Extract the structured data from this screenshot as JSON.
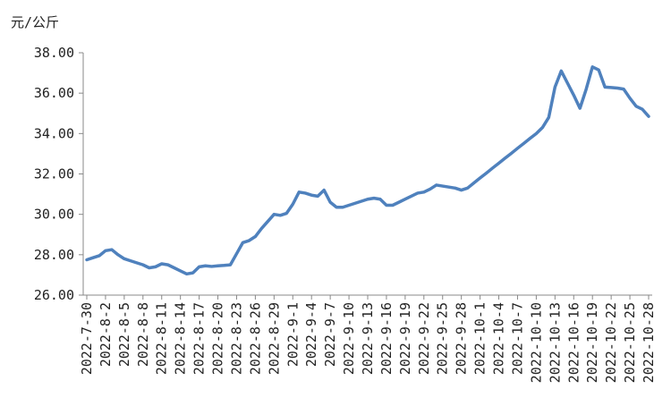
{
  "chart_data": {
    "type": "line",
    "ylabel": "元/公斤",
    "categories": [
      "2022-7-30",
      null,
      null,
      "2022-8-2",
      null,
      null,
      "2022-8-5",
      null,
      null,
      "2022-8-8",
      null,
      null,
      "2022-8-11",
      null,
      null,
      "2022-8-14",
      null,
      null,
      "2022-8-17",
      null,
      null,
      "2022-8-20",
      null,
      null,
      "2022-8-23",
      null,
      null,
      "2022-8-26",
      null,
      null,
      "2022-8-29",
      null,
      null,
      "2022-9-1",
      null,
      null,
      "2022-9-4",
      null,
      null,
      "2022-9-7",
      null,
      null,
      "2022-9-10",
      null,
      null,
      "2022-9-13",
      null,
      null,
      "2022-9-16",
      null,
      null,
      "2022-9-19",
      null,
      null,
      "2022-9-22",
      null,
      null,
      "2022-9-25",
      null,
      null,
      "2022-9-28",
      null,
      null,
      "2022-10-1",
      null,
      null,
      "2022-10-4",
      null,
      null,
      "2022-10-7",
      null,
      null,
      "2022-10-10",
      null,
      null,
      "2022-10-13",
      null,
      null,
      "2022-10-16",
      null,
      null,
      "2022-10-19",
      null,
      null,
      "2022-10-22",
      null,
      null,
      "2022-10-25",
      null,
      null,
      "2022-10-28"
    ],
    "values": [
      27.75,
      27.85,
      27.95,
      28.2,
      28.25,
      28.0,
      27.8,
      27.7,
      27.6,
      27.5,
      27.35,
      27.4,
      27.55,
      27.5,
      27.35,
      27.2,
      27.05,
      27.1,
      27.4,
      27.45,
      27.42,
      27.45,
      27.47,
      27.5,
      28.05,
      28.6,
      28.7,
      28.9,
      29.3,
      29.65,
      30.0,
      29.95,
      30.05,
      30.5,
      31.1,
      31.05,
      30.95,
      30.9,
      31.2,
      30.6,
      30.35,
      30.35,
      30.45,
      30.55,
      30.65,
      30.75,
      30.8,
      30.75,
      30.45,
      30.45,
      30.6,
      30.75,
      30.9,
      31.05,
      31.1,
      31.25,
      31.45,
      31.4,
      31.35,
      31.3,
      31.2,
      31.3,
      31.55,
      31.8,
      32.04,
      32.29,
      32.53,
      32.78,
      33.02,
      33.27,
      33.51,
      33.76,
      34.0,
      34.3,
      34.8,
      36.3,
      37.1,
      36.5,
      35.9,
      35.25,
      36.2,
      37.3,
      37.15,
      36.3,
      36.28,
      36.25,
      36.2,
      35.75,
      35.35,
      35.2,
      34.85
    ],
    "color": "#4f81bd",
    "ylim": [
      26,
      38
    ],
    "yticks": [
      {
        "value": 26,
        "label": "26.00"
      },
      {
        "value": 28,
        "label": "28.00"
      },
      {
        "value": 30,
        "label": "30.00"
      },
      {
        "value": 32,
        "label": "32.00"
      },
      {
        "value": 34,
        "label": "34.00"
      },
      {
        "value": 36,
        "label": "36.00"
      },
      {
        "value": 38,
        "label": "38.00"
      }
    ],
    "grid": false
  }
}
